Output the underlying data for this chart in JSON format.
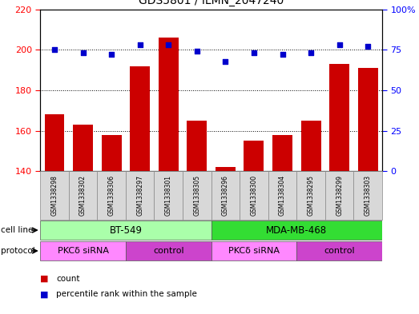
{
  "title": "GDS5801 / ILMN_2047240",
  "samples": [
    "GSM1338298",
    "GSM1338302",
    "GSM1338306",
    "GSM1338297",
    "GSM1338301",
    "GSM1338305",
    "GSM1338296",
    "GSM1338300",
    "GSM1338304",
    "GSM1338295",
    "GSM1338299",
    "GSM1338303"
  ],
  "counts": [
    168,
    163,
    158,
    192,
    206,
    165,
    142,
    155,
    158,
    165,
    193,
    191
  ],
  "percentiles": [
    75,
    73,
    72,
    78,
    78,
    74,
    68,
    73,
    72,
    73,
    78,
    77
  ],
  "ylim_left": [
    140,
    220
  ],
  "ylim_right": [
    0,
    100
  ],
  "yticks_left": [
    140,
    160,
    180,
    200,
    220
  ],
  "yticks_right": [
    0,
    25,
    50,
    75,
    100
  ],
  "bar_color": "#cc0000",
  "dot_color": "#0000cc",
  "cell_lines": [
    {
      "label": "BT-549",
      "start": 0,
      "end": 6,
      "color": "#aaffaa"
    },
    {
      "label": "MDA-MB-468",
      "start": 6,
      "end": 12,
      "color": "#33dd33"
    }
  ],
  "protocols": [
    {
      "label": "PKCδ siRNA",
      "start": 0,
      "end": 3,
      "color": "#ff88ff"
    },
    {
      "label": "control",
      "start": 3,
      "end": 6,
      "color": "#cc44cc"
    },
    {
      "label": "PKCδ siRNA",
      "start": 6,
      "end": 9,
      "color": "#ff88ff"
    },
    {
      "label": "control",
      "start": 9,
      "end": 12,
      "color": "#cc44cc"
    }
  ],
  "legend_count_color": "#cc0000",
  "legend_dot_color": "#0000cc",
  "sample_bg_color": "#d8d8d8",
  "plot_bg_color": "#ffffff"
}
